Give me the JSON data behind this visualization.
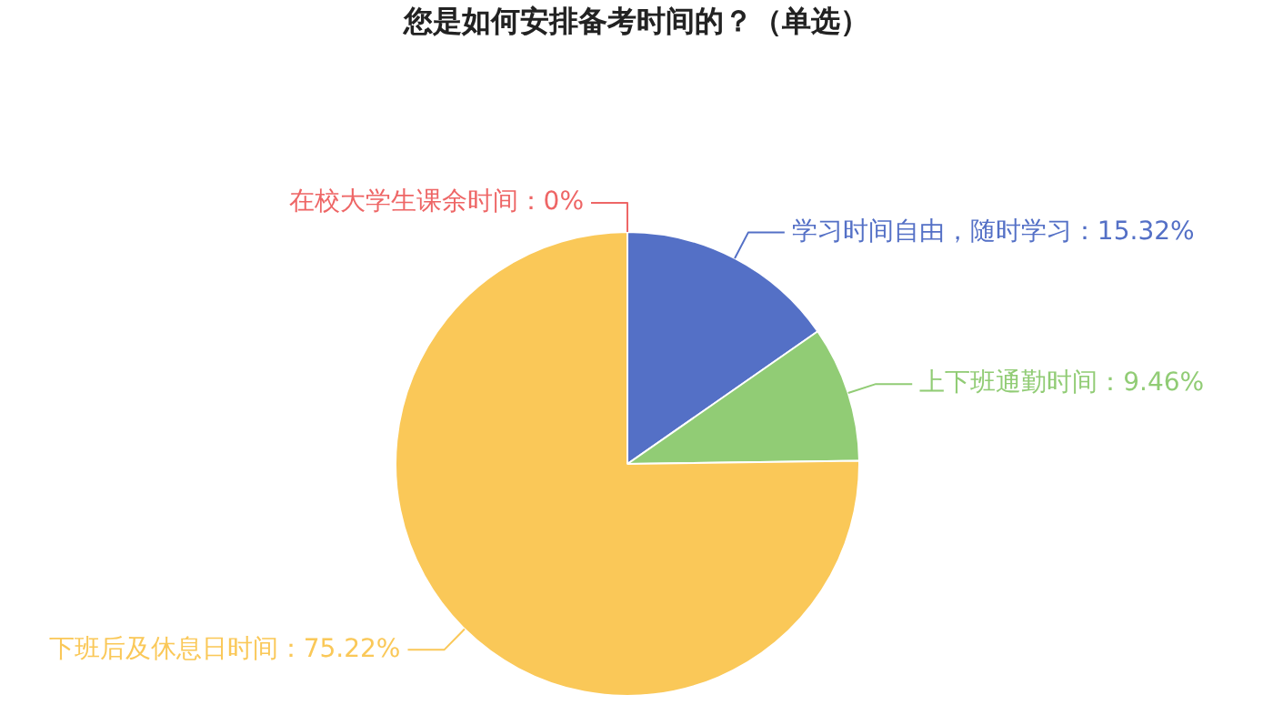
{
  "chart_data": {
    "type": "pie",
    "title": "您是如何安排备考时间的？（单选）",
    "categories": [
      "学习时间自由，随时学习",
      "上下班通勤时间",
      "下班后及休息日时间",
      "在校大学生课余时间"
    ],
    "values": [
      15.32,
      9.46,
      75.22,
      0
    ],
    "colors": [
      "#5470c6",
      "#91cc75",
      "#fac858",
      "#ee6666"
    ],
    "value_labels": [
      "15.32%",
      "9.46%",
      "75.22%",
      "0%"
    ]
  }
}
